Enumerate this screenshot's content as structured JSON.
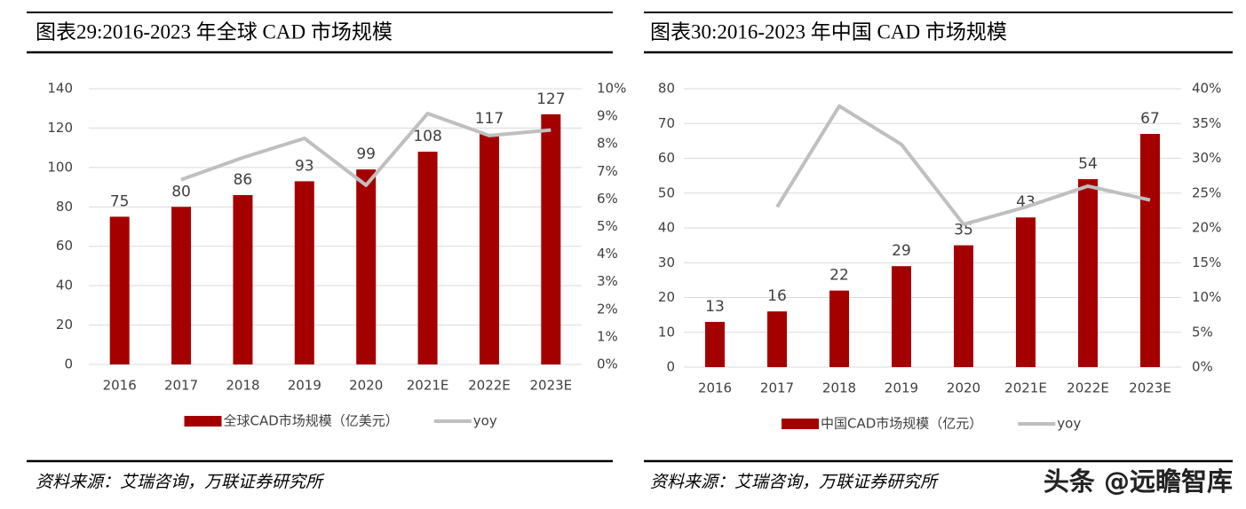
{
  "chart_data": [
    {
      "type": "bar",
      "title": "图表29:2016-2023 年全球 CAD 市场规模",
      "source": "资料来源：艾瑞咨询，万联证券研究所",
      "categories": [
        "2016",
        "2017",
        "2018",
        "2019",
        "2020",
        "2021E",
        "2022E",
        "2023E"
      ],
      "series": [
        {
          "name": "全球CAD市场规模（亿美元）",
          "type": "bar",
          "color": "#a50000",
          "values": [
            75,
            80,
            86,
            93,
            99,
            108,
            117,
            127
          ]
        },
        {
          "name": "yoy",
          "type": "line",
          "axis": "y2",
          "color": "#bfbfbf",
          "values": [
            null,
            6.7,
            7.5,
            8.2,
            6.5,
            9.1,
            8.3,
            8.5
          ]
        }
      ],
      "ylim": [
        0,
        140
      ],
      "yticks": [
        0,
        20,
        40,
        60,
        80,
        100,
        120,
        140
      ],
      "y2lim": [
        0,
        10
      ],
      "y2ticks": [
        {
          "value": 0,
          "label": "0%"
        },
        {
          "value": 1,
          "label": "1%"
        },
        {
          "value": 2,
          "label": "2%"
        },
        {
          "value": 3,
          "label": "3%"
        },
        {
          "value": 4,
          "label": "4%"
        },
        {
          "value": 5,
          "label": "5%"
        },
        {
          "value": 6,
          "label": "6%"
        },
        {
          "value": 7,
          "label": "7%"
        },
        {
          "value": 8,
          "label": "8%"
        },
        {
          "value": 9,
          "label": "9%"
        },
        {
          "value": 10,
          "label": "10%"
        }
      ],
      "grid": true,
      "legend": "bottom"
    },
    {
      "type": "bar",
      "title": "图表30:2016-2023 年中国 CAD 市场规模",
      "source": "资料来源：艾瑞咨询，万联证券研究所",
      "categories": [
        "2016",
        "2017",
        "2018",
        "2019",
        "2020",
        "2021E",
        "2022E",
        "2023E"
      ],
      "series": [
        {
          "name": "中国CAD市场规模（亿元）",
          "type": "bar",
          "color": "#a50000",
          "values": [
            13,
            16,
            22,
            29,
            35,
            43,
            54,
            67
          ]
        },
        {
          "name": "yoy",
          "type": "line",
          "axis": "y2",
          "color": "#bfbfbf",
          "values": [
            null,
            23,
            37.5,
            32,
            20.5,
            23,
            26,
            24
          ]
        }
      ],
      "ylim": [
        0,
        80
      ],
      "yticks": [
        0,
        10,
        20,
        30,
        40,
        50,
        60,
        70,
        80
      ],
      "y2lim": [
        0,
        40
      ],
      "y2ticks": [
        {
          "value": 0,
          "label": "0%"
        },
        {
          "value": 5,
          "label": "5%"
        },
        {
          "value": 10,
          "label": "10%"
        },
        {
          "value": 15,
          "label": "15%"
        },
        {
          "value": 20,
          "label": "20%"
        },
        {
          "value": 25,
          "label": "25%"
        },
        {
          "value": 30,
          "label": "30%"
        },
        {
          "value": 35,
          "label": "35%"
        },
        {
          "value": 40,
          "label": "40%"
        }
      ],
      "grid": true,
      "legend": "bottom"
    }
  ],
  "watermark": "头条 @远瞻智库"
}
